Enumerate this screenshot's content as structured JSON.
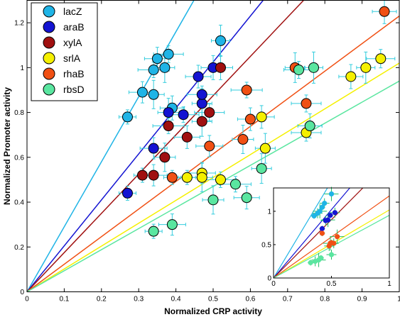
{
  "chart_data": {
    "type": "scatter",
    "xlabel": "Normalized CRP activity",
    "ylabel": "Normalized Promoter activity",
    "xlim": [
      0,
      1
    ],
    "ylim": [
      0,
      1.3
    ],
    "xticks": [
      "0",
      "0.1",
      "0.2",
      "0.3",
      "0.4",
      "0.5",
      "0.6",
      "0.7",
      "0.8",
      "0.9",
      "1"
    ],
    "yticks": [
      "0",
      "0.2",
      "0.4",
      "0.6",
      "0.8",
      "1",
      "1.2"
    ],
    "legend_position": "top-left",
    "series": [
      {
        "name": "lacZ",
        "color": "#1fb4e6",
        "fit_slope": 2.9,
        "points": [
          [
            0.27,
            0.78
          ],
          [
            0.31,
            0.89
          ],
          [
            0.34,
            0.88
          ],
          [
            0.34,
            0.99
          ],
          [
            0.35,
            1.04
          ],
          [
            0.37,
            1.0
          ],
          [
            0.38,
            1.06
          ],
          [
            0.39,
            0.82
          ],
          [
            0.52,
            1.12
          ]
        ]
      },
      {
        "name": "araB",
        "color": "#1414d2",
        "fit_slope": 2.05,
        "points": [
          [
            0.27,
            0.44
          ],
          [
            0.34,
            0.64
          ],
          [
            0.38,
            0.8
          ],
          [
            0.42,
            0.79
          ],
          [
            0.46,
            0.96
          ],
          [
            0.47,
            0.84
          ],
          [
            0.47,
            0.88
          ],
          [
            0.5,
            1.0
          ]
        ]
      },
      {
        "name": "xylA",
        "color": "#a01010",
        "fit_slope": 1.75,
        "points": [
          [
            0.31,
            0.52
          ],
          [
            0.34,
            0.52
          ],
          [
            0.37,
            0.6
          ],
          [
            0.38,
            0.74
          ],
          [
            0.43,
            0.69
          ],
          [
            0.47,
            0.76
          ],
          [
            0.49,
            0.8
          ],
          [
            0.52,
            1.0
          ]
        ]
      },
      {
        "name": "srlA",
        "color": "#f5f000",
        "fit_slope": 1.02,
        "points": [
          [
            0.43,
            0.51
          ],
          [
            0.47,
            0.53
          ],
          [
            0.47,
            0.51
          ],
          [
            0.52,
            0.5
          ],
          [
            0.63,
            0.78
          ],
          [
            0.64,
            0.64
          ],
          [
            0.75,
            0.71
          ],
          [
            0.87,
            0.96
          ],
          [
            0.91,
            1.0
          ],
          [
            0.95,
            1.04
          ]
        ]
      },
      {
        "name": "rhaB",
        "color": "#f05014",
        "fit_slope": 1.23,
        "points": [
          [
            0.39,
            0.51
          ],
          [
            0.49,
            0.65
          ],
          [
            0.58,
            0.68
          ],
          [
            0.59,
            0.9
          ],
          [
            0.6,
            0.77
          ],
          [
            0.72,
            1.0
          ],
          [
            0.75,
            0.84
          ],
          [
            0.96,
            1.25
          ]
        ]
      },
      {
        "name": "rbsD",
        "color": "#5ae6a0",
        "fit_slope": 0.94,
        "points": [
          [
            0.34,
            0.27
          ],
          [
            0.39,
            0.3
          ],
          [
            0.5,
            0.41
          ],
          [
            0.56,
            0.48
          ],
          [
            0.59,
            0.42
          ],
          [
            0.63,
            0.55
          ],
          [
            0.73,
            0.99
          ],
          [
            0.76,
            0.74
          ],
          [
            0.77,
            1.0
          ]
        ]
      }
    ],
    "inset": {
      "xlim": [
        0,
        1
      ],
      "ylim": [
        0,
        1.35
      ],
      "xticks": [
        "0",
        "0.5",
        "1"
      ],
      "yticks": [
        "0",
        "0.5",
        "1"
      ],
      "series": [
        {
          "name": "lacZ",
          "points": [
            [
              0.35,
              0.93
            ],
            [
              0.38,
              0.97
            ],
            [
              0.4,
              1.0
            ],
            [
              0.42,
              1.06
            ],
            [
              0.44,
              1.12
            ],
            [
              0.5,
              1.26
            ]
          ]
        },
        {
          "name": "araB",
          "points": [
            [
              0.42,
              0.74
            ],
            [
              0.45,
              0.86
            ],
            [
              0.47,
              0.87
            ],
            [
              0.49,
              0.94
            ],
            [
              0.53,
              0.98
            ]
          ]
        },
        {
          "name": "rhaB",
          "points": [
            [
              0.42,
              0.67
            ],
            [
              0.48,
              0.48
            ],
            [
              0.49,
              0.52
            ],
            [
              0.5,
              0.53
            ],
            [
              0.52,
              0.52
            ],
            [
              0.55,
              0.62
            ]
          ]
        },
        {
          "name": "rbsD",
          "points": [
            [
              0.32,
              0.23
            ],
            [
              0.36,
              0.25
            ],
            [
              0.39,
              0.27
            ],
            [
              0.41,
              0.3
            ],
            [
              0.5,
              0.35
            ]
          ]
        }
      ]
    }
  }
}
